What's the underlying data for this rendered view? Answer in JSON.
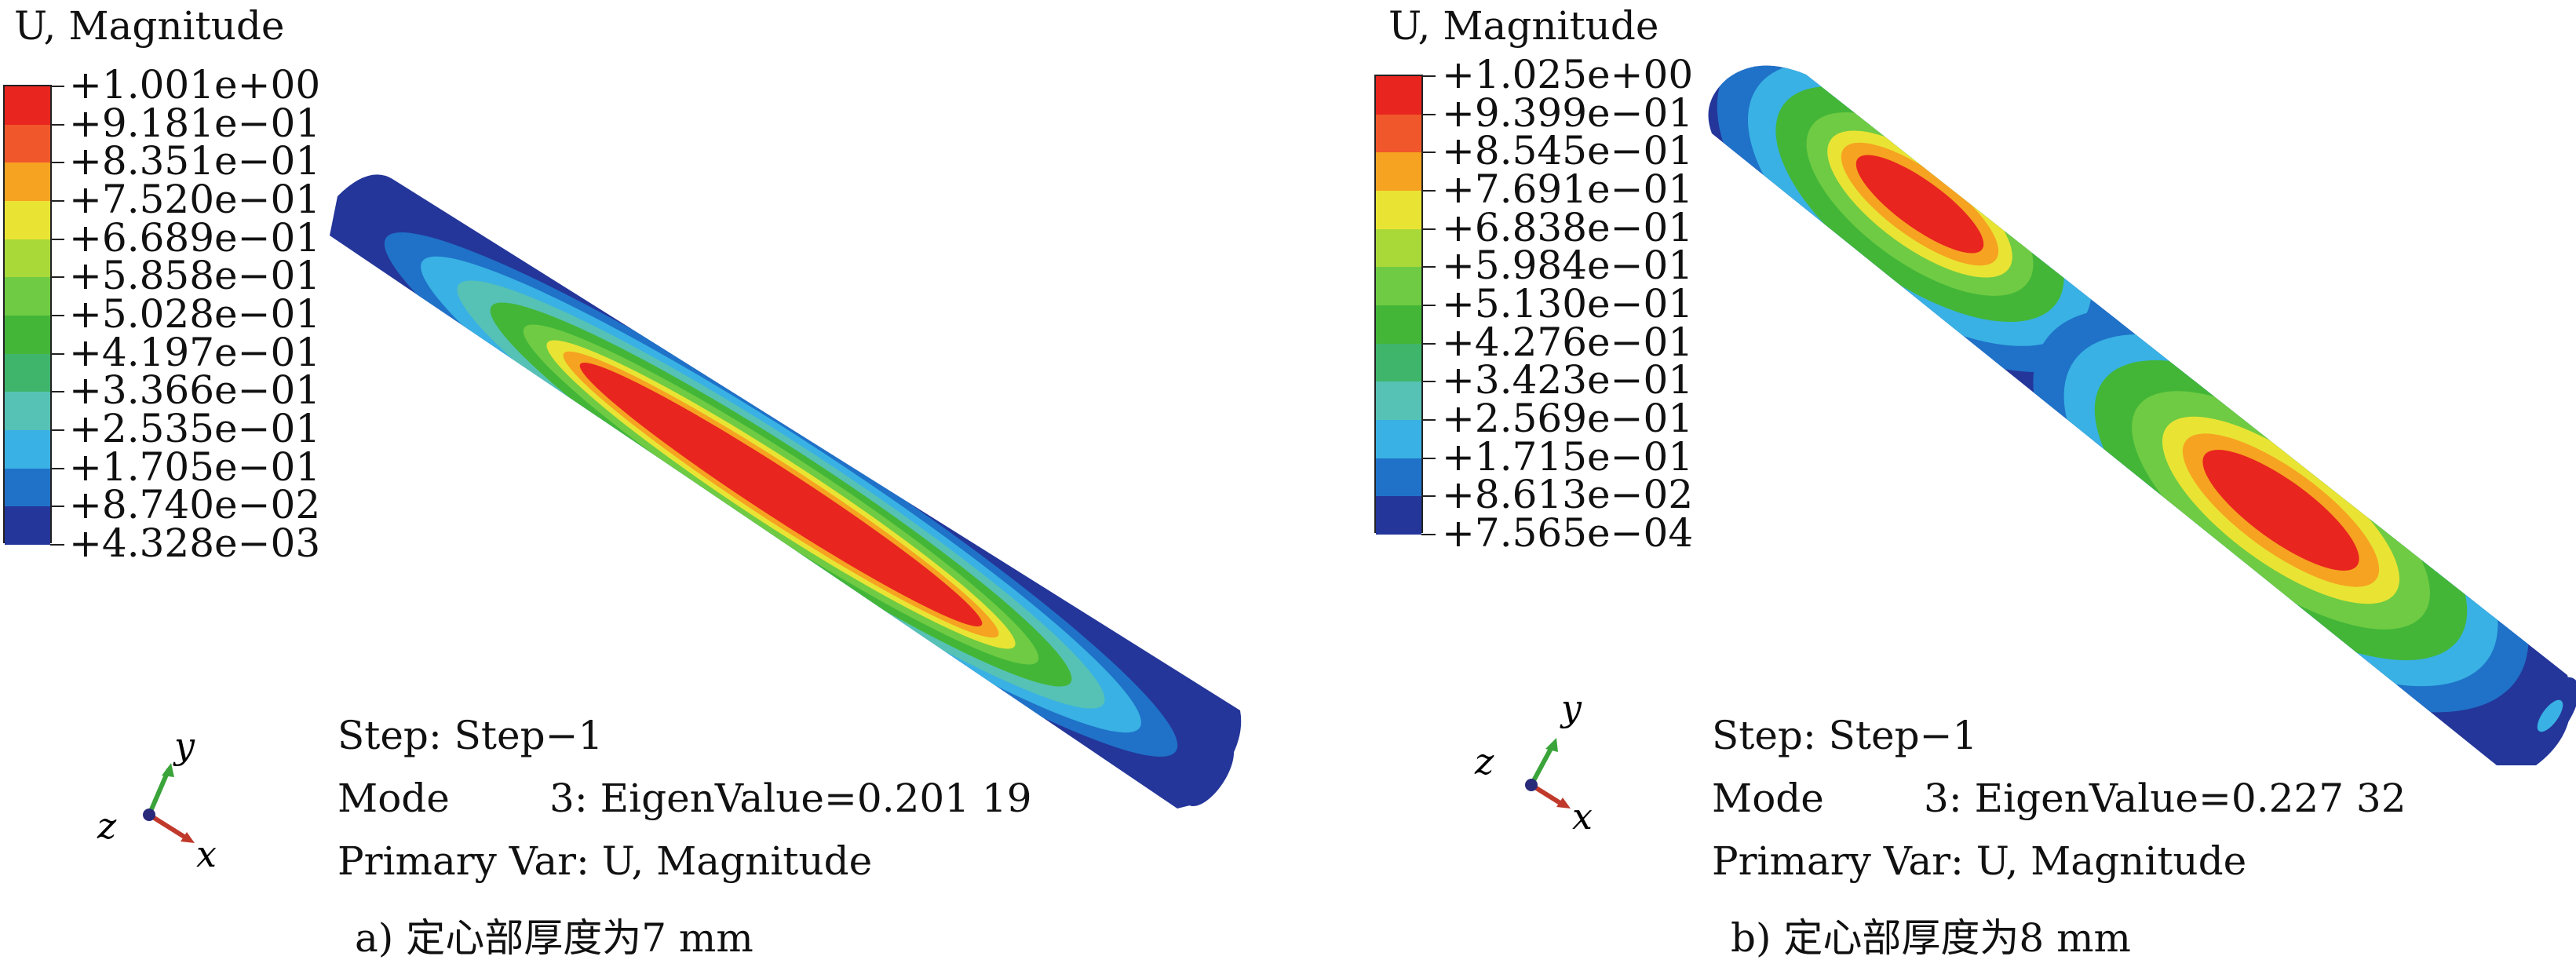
{
  "colors": {
    "red": "#e8251f",
    "red_orange": "#f0572b",
    "orange": "#f6a321",
    "yellow": "#e9e434",
    "yellow_green": "#a9d939",
    "green_light": "#6fcb43",
    "green": "#43b638",
    "green_teal": "#3fb56c",
    "teal": "#56c2b5",
    "cyan": "#39b1e4",
    "blue": "#1f72c8",
    "dark_blue": "#24369a",
    "axis_y": "#3aa43a",
    "axis_x": "#c0392b",
    "axis_z": "#2a2a7a"
  },
  "panels": [
    {
      "id": "a",
      "legend": {
        "title": "U, Magnitude",
        "labels": [
          "+1.001e+00",
          "+9.181e−01",
          "+8.351e−01",
          "+7.520e−01",
          "+6.689e−01",
          "+5.858e−01",
          "+5.028e−01",
          "+4.197e−01",
          "+3.366e−01",
          "+2.535e−01",
          "+1.705e−01",
          "+8.740e−02",
          "+4.328e−03"
        ]
      },
      "step_line": "Step: Step−1",
      "mode_line": "Mode        3: EigenValue=0.201 19",
      "var_line": "Primary Var: U, Magnitude",
      "caption": "a) 定心部厚度为7 mm",
      "axes": {
        "y": "y",
        "x": "x",
        "z": "z"
      }
    },
    {
      "id": "b",
      "legend": {
        "title": "U, Magnitude",
        "labels": [
          "+1.025e+00",
          "+9.399e−01",
          "+8.545e−01",
          "+7.691e−01",
          "+6.838e−01",
          "+5.984e−01",
          "+5.130e−01",
          "+4.276e−01",
          "+3.423e−01",
          "+2.569e−01",
          "+1.715e−01",
          "+8.613e−02",
          "+7.565e−04"
        ]
      },
      "step_line": "Step: Step−1",
      "mode_line": "Mode        3: EigenValue=0.227 32",
      "var_line": "Primary Var: U, Magnitude",
      "caption": "b) 定心部厚度为8 mm",
      "axes": {
        "y": "y",
        "x": "x",
        "z": "z"
      }
    }
  ]
}
